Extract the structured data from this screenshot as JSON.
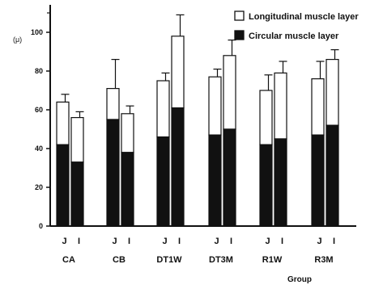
{
  "chart_data": {
    "type": "bar",
    "stacked": true,
    "ylabel": "(μ)",
    "xlabel": "Group",
    "ylim": [
      0,
      110
    ],
    "yticks": [
      0,
      20,
      40,
      60,
      80,
      100
    ],
    "ytick_labels": [
      "0",
      "20",
      "40",
      "60",
      "80",
      "100"
    ],
    "legend": {
      "placement": "top-right",
      "entries": [
        {
          "label": "Longitudinal muscle layer",
          "color": "#ffffff"
        },
        {
          "label": "Circular muscle layer",
          "color": "#111111"
        }
      ]
    },
    "groups": [
      {
        "label": "CA",
        "bars": [
          {
            "sub": "J",
            "circular": 42,
            "total": 64,
            "error": 4
          },
          {
            "sub": "I",
            "circular": 33,
            "total": 56,
            "error": 3
          }
        ]
      },
      {
        "label": "CB",
        "bars": [
          {
            "sub": "J",
            "circular": 55,
            "total": 71,
            "error": 15
          },
          {
            "sub": "I",
            "circular": 38,
            "total": 58,
            "error": 4
          }
        ]
      },
      {
        "label": "DT1W",
        "bars": [
          {
            "sub": "J",
            "circular": 46,
            "total": 75,
            "error": 4
          },
          {
            "sub": "I",
            "circular": 61,
            "total": 98,
            "error": 11
          }
        ]
      },
      {
        "label": "DT3M",
        "bars": [
          {
            "sub": "J",
            "circular": 47,
            "total": 77,
            "error": 4
          },
          {
            "sub": "I",
            "circular": 50,
            "total": 88,
            "error": 8
          }
        ]
      },
      {
        "label": "R1W",
        "bars": [
          {
            "sub": "J",
            "circular": 42,
            "total": 70,
            "error": 8
          },
          {
            "sub": "I",
            "circular": 45,
            "total": 79,
            "error": 6
          }
        ]
      },
      {
        "label": "R3M",
        "bars": [
          {
            "sub": "J",
            "circular": 47,
            "total": 76,
            "error": 9
          },
          {
            "sub": "I",
            "circular": 52,
            "total": 86,
            "error": 5
          }
        ]
      }
    ]
  }
}
